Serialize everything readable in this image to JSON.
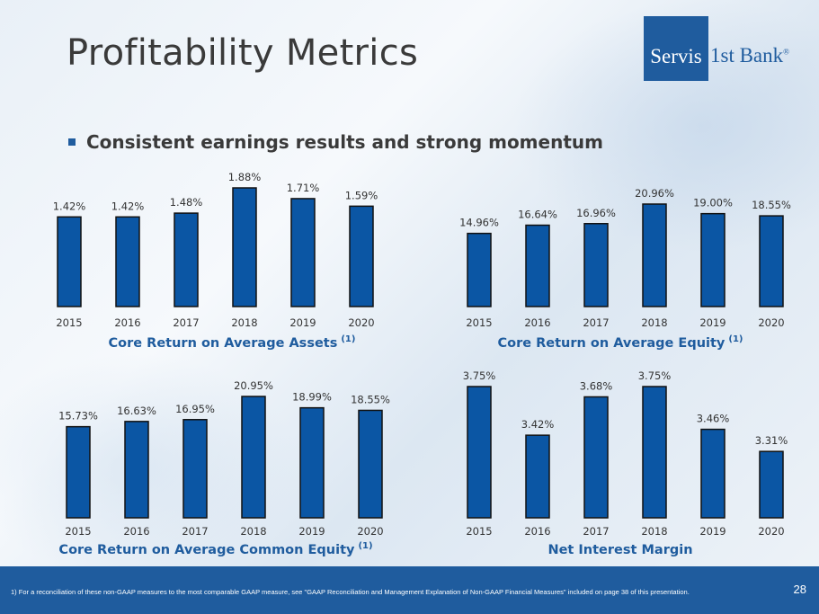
{
  "slide": {
    "title": "Profitability Metrics",
    "bullet": "Consistent earnings results and strong momentum",
    "logo": {
      "primary": "Servis",
      "secondary": "1st Bank",
      "registered": "®"
    },
    "footnote": "1)     For a reconciliation of these non-GAAP measures to the most comparable GAAP measure, see \"GAAP Reconciliation and Management Explanation of Non-GAAP Financial Measures\" included on page 38 of this presentation.",
    "page_number": "28",
    "colors": {
      "bar": "#0b56a4",
      "bar_outline": "#111111",
      "footer": "#1f5c9e"
    }
  },
  "chart_data": [
    {
      "type": "bar",
      "title": "Core Return on Average Assets",
      "title_superscript": "(1)",
      "categories": [
        "2015",
        "2016",
        "2017",
        "2018",
        "2019",
        "2020"
      ],
      "values": [
        1.42,
        1.42,
        1.48,
        1.88,
        1.71,
        1.59
      ],
      "labels": [
        "1.42%",
        "1.42%",
        "1.48%",
        "1.88%",
        "1.71%",
        "1.59%"
      ],
      "ylim": [
        0,
        1.88
      ]
    },
    {
      "type": "bar",
      "title": "Core Return on Average Equity",
      "title_superscript": "(1)",
      "categories": [
        "2015",
        "2016",
        "2017",
        "2018",
        "2019",
        "2020"
      ],
      "values": [
        14.96,
        16.64,
        16.96,
        20.96,
        19.0,
        18.55
      ],
      "labels": [
        "14.96%",
        "16.64%",
        "16.96%",
        "20.96%",
        "19.00%",
        "18.55%"
      ],
      "ylim": [
        0,
        20.96
      ]
    },
    {
      "type": "bar",
      "title": "Core Return on Average Common Equity",
      "title_superscript": "(1)",
      "categories": [
        "2015",
        "2016",
        "2017",
        "2018",
        "2019",
        "2020"
      ],
      "values": [
        15.73,
        16.63,
        16.95,
        20.95,
        18.99,
        18.55
      ],
      "labels": [
        "15.73%",
        "16.63%",
        "16.95%",
        "20.95%",
        "18.99%",
        "18.55%"
      ],
      "ylim": [
        0,
        20.95
      ]
    },
    {
      "type": "bar",
      "title": "Net Interest Margin",
      "title_superscript": "",
      "categories": [
        "2015",
        "2016",
        "2017",
        "2018",
        "2019",
        "2020"
      ],
      "values": [
        3.75,
        3.42,
        3.68,
        3.75,
        3.46,
        3.31
      ],
      "labels": [
        "3.75%",
        "3.42%",
        "3.68%",
        "3.75%",
        "3.46%",
        "3.31%"
      ],
      "ylim": [
        2.86,
        3.75
      ]
    }
  ]
}
